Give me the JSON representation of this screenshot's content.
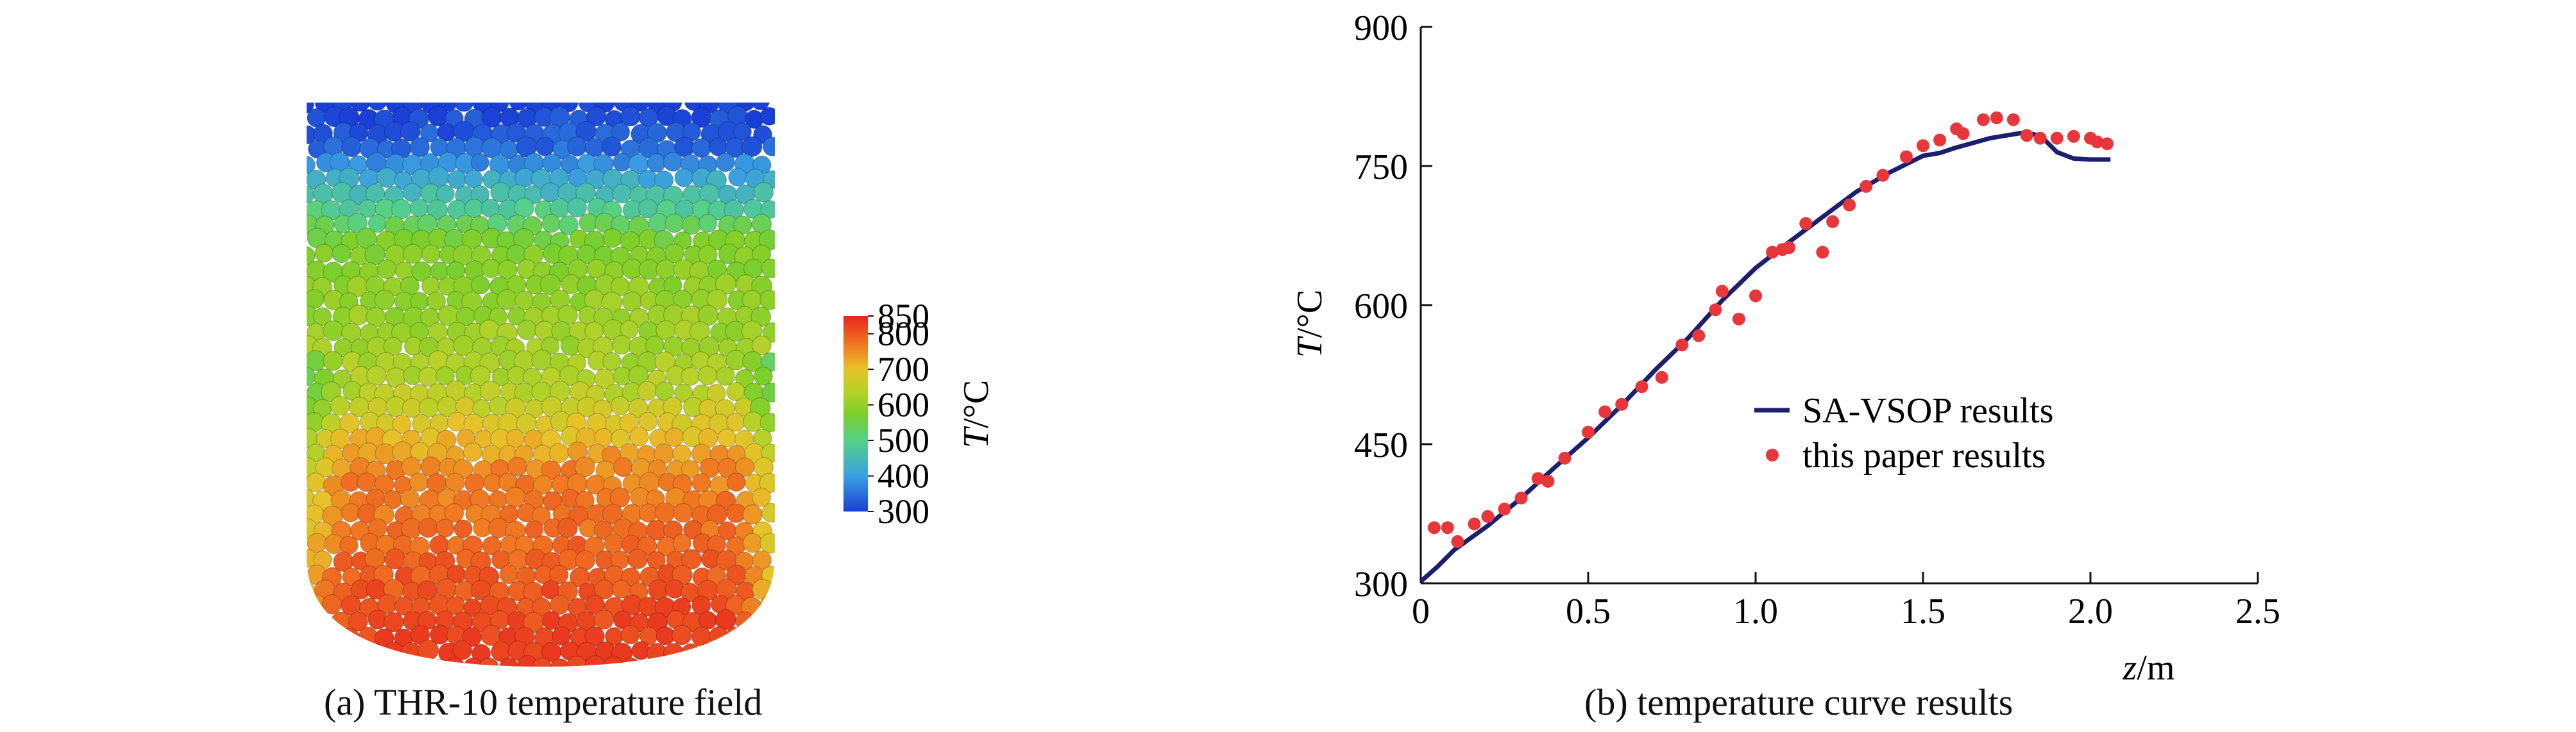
{
  "panel_a": {
    "caption": "(a) THR-10 temperature field",
    "colorbar": {
      "title_var": "T",
      "title_unit": "/°C",
      "ticks": [
        "850",
        "800",
        "700",
        "600",
        "500",
        "400",
        "300"
      ],
      "tick_values": [
        850,
        800,
        700,
        600,
        500,
        400,
        300
      ],
      "min": 300,
      "max": 850
    },
    "temperature_profile": {
      "min_temp": 300,
      "max_temp": 830
    }
  },
  "chart_data": {
    "type": "line",
    "caption": "(b) temperature curve results",
    "xlabel_var": "z",
    "xlabel_unit": "/m",
    "ylabel_var": "T",
    "ylabel_unit": "/°C",
    "xlim": [
      0,
      2.5
    ],
    "ylim": [
      300,
      900
    ],
    "xticks": [
      0,
      0.5,
      1.0,
      1.5,
      2.0,
      2.5
    ],
    "xtick_labels": [
      "0",
      "0.5",
      "1.0",
      "1.5",
      "2.0",
      "2.5"
    ],
    "yticks": [
      300,
      450,
      600,
      750,
      900
    ],
    "ytick_labels": [
      "300",
      "450",
      "600",
      "750",
      "900"
    ],
    "grid": false,
    "legend_position": "center-right",
    "series": [
      {
        "name": "SA-VSOP results",
        "kind": "line",
        "color": "#1a1f6e",
        "x": [
          0,
          0.05,
          0.1,
          0.2,
          0.3,
          0.4,
          0.5,
          0.6,
          0.7,
          0.8,
          0.9,
          1.0,
          1.1,
          1.2,
          1.3,
          1.4,
          1.5,
          1.55,
          1.6,
          1.7,
          1.8,
          1.85,
          1.9,
          1.95,
          2.0,
          2.06
        ],
        "y": [
          302,
          318,
          336,
          362,
          392,
          425,
          457,
          492,
          530,
          565,
          605,
          640,
          668,
          695,
          722,
          743,
          761,
          764,
          770,
          780,
          786,
          783,
          765,
          758,
          757,
          757
        ]
      },
      {
        "name": "this paper results",
        "kind": "scatter",
        "color": "#e8373a",
        "x": [
          0.04,
          0.08,
          0.11,
          0.16,
          0.2,
          0.25,
          0.3,
          0.35,
          0.38,
          0.43,
          0.5,
          0.55,
          0.6,
          0.66,
          0.72,
          0.78,
          0.83,
          0.88,
          0.9,
          0.95,
          1.0,
          1.05,
          1.08,
          1.1,
          1.15,
          1.2,
          1.23,
          1.28,
          1.33,
          1.38,
          1.45,
          1.5,
          1.55,
          1.6,
          1.62,
          1.68,
          1.72,
          1.77,
          1.81,
          1.85,
          1.9,
          1.95,
          2.0,
          2.02,
          2.05
        ],
        "y": [
          360,
          360,
          345,
          364,
          372,
          380,
          392,
          413,
          410,
          435,
          463,
          485,
          493,
          512,
          522,
          557,
          567,
          595,
          615,
          585,
          610,
          657,
          660,
          662,
          688,
          657,
          690,
          708,
          728,
          740,
          760,
          772,
          778,
          790,
          785,
          800,
          802,
          800,
          783,
          780,
          780,
          782,
          780,
          776,
          774
        ]
      }
    ]
  }
}
